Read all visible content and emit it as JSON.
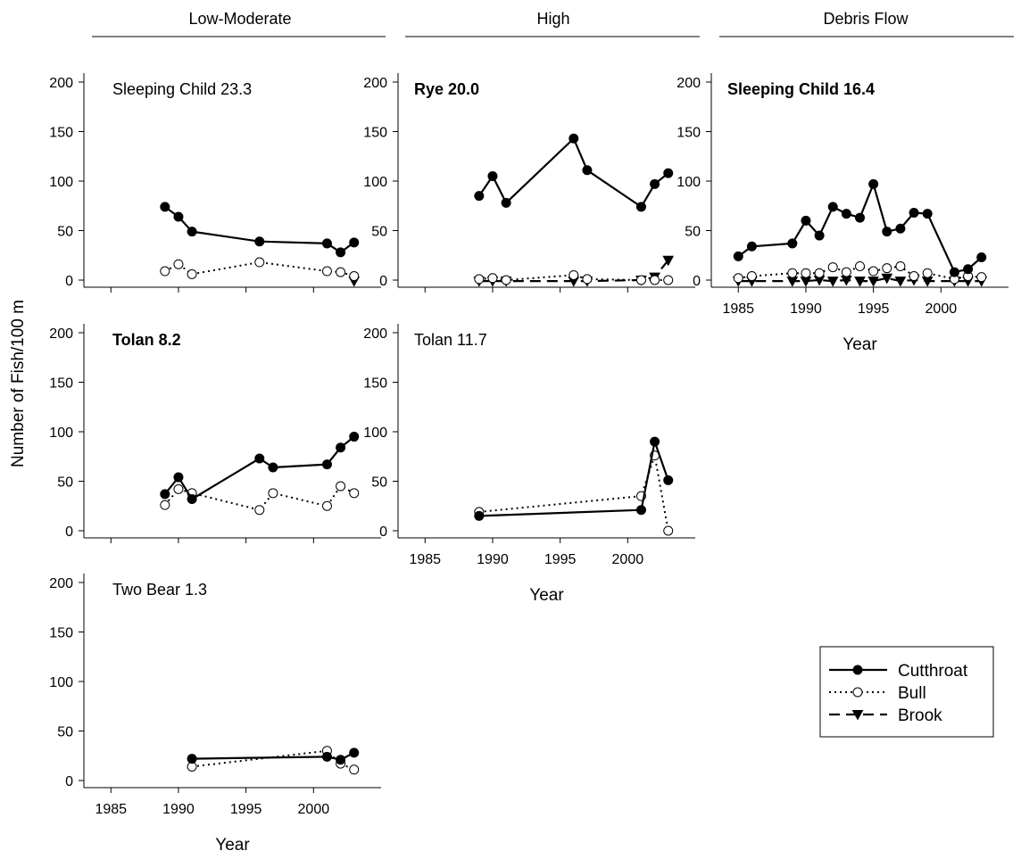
{
  "figure": {
    "column_headers": [
      "Low-Moderate",
      "High",
      "Debris Flow"
    ],
    "ylabel": "Number of Fish/100 m",
    "xlabel": "Year",
    "xlim": [
      1983,
      2005
    ],
    "ylim": [
      0,
      200
    ],
    "x_ticks": [
      1985,
      1990,
      1995,
      2000
    ],
    "y_ticks": [
      0,
      50,
      100,
      150,
      200
    ]
  },
  "legend": {
    "items": [
      {
        "label": "Cutthroat",
        "marker": "filled-circle",
        "line": "solid"
      },
      {
        "label": "Bull",
        "marker": "open-circle",
        "line": "dotted"
      },
      {
        "label": "Brook",
        "marker": "filled-triangle-down",
        "line": "dashed"
      }
    ]
  },
  "chart_data": [
    {
      "type": "line",
      "title": "Sleeping Child 23.3",
      "title_bold": false,
      "group": "Low-Moderate",
      "series": [
        {
          "name": "Cutthroat",
          "x": [
            1989,
            1990,
            1991,
            1996,
            2001,
            2002,
            2003
          ],
          "y": [
            74,
            64,
            49,
            39,
            37,
            28,
            38
          ]
        },
        {
          "name": "Bull",
          "x": [
            1989,
            1990,
            1991,
            1996,
            2001,
            2002,
            2003
          ],
          "y": [
            9,
            16,
            6,
            18,
            9,
            8,
            4
          ]
        },
        {
          "name": "Brook",
          "x": [
            2003
          ],
          "y": [
            -1
          ]
        }
      ]
    },
    {
      "type": "line",
      "title": "Rye 20.0",
      "title_bold": true,
      "group": "High",
      "series": [
        {
          "name": "Cutthroat",
          "x": [
            1989,
            1990,
            1991,
            1996,
            1997,
            2001,
            2002,
            2003
          ],
          "y": [
            85,
            105,
            78,
            143,
            111,
            74,
            97,
            108
          ]
        },
        {
          "name": "Bull",
          "x": [
            1989,
            1990,
            1991,
            1996,
            1997,
            2001,
            2002,
            2003
          ],
          "y": [
            1,
            2,
            0,
            5,
            1,
            0,
            0,
            0
          ]
        },
        {
          "name": "Brook",
          "x": [
            1989,
            1990,
            1991,
            1996,
            1997,
            2001,
            2002,
            2003
          ],
          "y": [
            -1,
            -1,
            -1,
            -1,
            -1,
            0,
            3,
            20
          ]
        }
      ]
    },
    {
      "type": "line",
      "title": "Sleeping Child 16.4",
      "title_bold": true,
      "group": "Debris Flow",
      "series": [
        {
          "name": "Cutthroat",
          "x": [
            1985,
            1986,
            1989,
            1990,
            1991,
            1992,
            1993,
            1994,
            1995,
            1996,
            1997,
            1998,
            1999,
            2001,
            2002,
            2003
          ],
          "y": [
            24,
            34,
            37,
            60,
            45,
            74,
            67,
            63,
            97,
            49,
            52,
            68,
            67,
            8,
            11,
            23
          ]
        },
        {
          "name": "Bull",
          "x": [
            1985,
            1986,
            1989,
            1990,
            1991,
            1992,
            1993,
            1994,
            1995,
            1996,
            1997,
            1998,
            1999,
            2001,
            2002,
            2003
          ],
          "y": [
            2,
            4,
            7,
            7,
            7,
            13,
            8,
            14,
            9,
            12,
            14,
            4,
            7,
            1,
            4,
            3
          ]
        },
        {
          "name": "Brook",
          "x": [
            1985,
            1986,
            1989,
            1990,
            1991,
            1992,
            1993,
            1994,
            1995,
            1996,
            1997,
            1998,
            1999,
            2001,
            2002,
            2003
          ],
          "y": [
            -1,
            -1,
            -1,
            -1,
            0,
            -1,
            0,
            -1,
            -1,
            2,
            -1,
            0,
            -1,
            -1,
            -1,
            -1
          ]
        }
      ]
    },
    {
      "type": "line",
      "title": "Tolan 8.2",
      "title_bold": true,
      "group": "Low-Moderate",
      "series": [
        {
          "name": "Cutthroat",
          "x": [
            1989,
            1990,
            1991,
            1996,
            1997,
            2001,
            2002,
            2003
          ],
          "y": [
            37,
            54,
            32,
            73,
            64,
            67,
            84,
            95
          ]
        },
        {
          "name": "Bull",
          "x": [
            1989,
            1990,
            1991,
            1996,
            1997,
            2001,
            2002,
            2003
          ],
          "y": [
            26,
            42,
            38,
            21,
            38,
            25,
            45,
            38
          ]
        }
      ]
    },
    {
      "type": "line",
      "title": "Tolan 11.7",
      "title_bold": false,
      "group": "High",
      "series": [
        {
          "name": "Cutthroat",
          "x": [
            1989,
            2001,
            2002,
            2003
          ],
          "y": [
            15,
            21,
            90,
            51
          ]
        },
        {
          "name": "Bull",
          "x": [
            1989,
            2001,
            2002,
            2003
          ],
          "y": [
            19,
            35,
            76,
            0
          ]
        }
      ]
    },
    {
      "type": "line",
      "title": "Two Bear 1.3",
      "title_bold": false,
      "group": "Low-Moderate",
      "series": [
        {
          "name": "Cutthroat",
          "x": [
            1991,
            2001,
            2002,
            2003
          ],
          "y": [
            22,
            24,
            21,
            28
          ]
        },
        {
          "name": "Bull",
          "x": [
            1991,
            2001,
            2002,
            2003
          ],
          "y": [
            14,
            30,
            17,
            11
          ]
        }
      ]
    }
  ]
}
